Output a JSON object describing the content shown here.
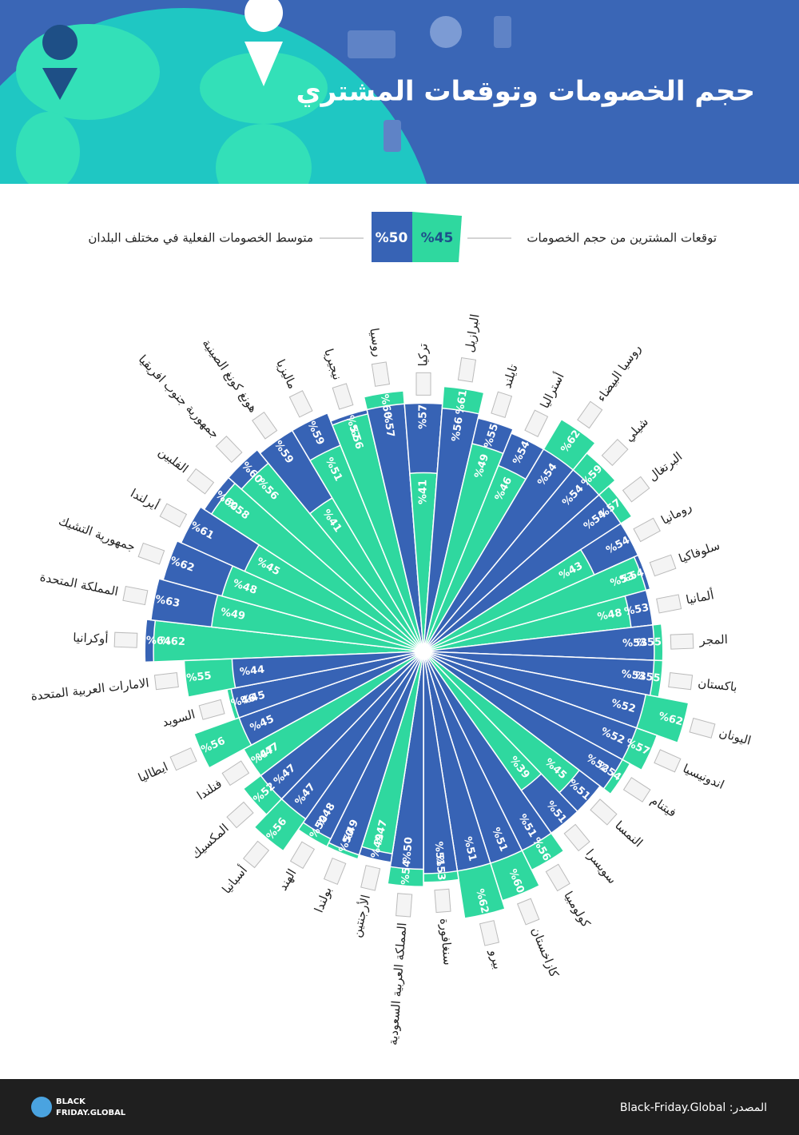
{
  "header": {
    "title": "حجم الخصومات وتوقعات المشتري"
  },
  "chart_data": {
    "type": "radial-bar",
    "categories": [
      "أوكرانيا",
      "المملكة المتحدة",
      "جمهورية التشيك",
      "أيرلندا",
      "الفلبين",
      "جمهورية جنوب افريقيا",
      "هونغ كونغ الصينية",
      "ماليزيا",
      "نيجيريا",
      "روسيا",
      "تركيا",
      "البرازيل",
      "تايلند",
      "أستراليا",
      "روسيا البيضاء",
      "شيلي",
      "البرتغال",
      "رومانيا",
      "سلوفاكيا",
      "ألمانيا",
      "المجر",
      "باكستان",
      "اليونان",
      "اندونيسيا",
      "فيتنام",
      "النمسا",
      "سويسرا",
      "كولومبيا",
      "كازاخستان",
      "بيرو",
      "سنغافورة",
      "المملكة العربية السعودية",
      "الأرجنتين",
      "بولندا",
      "الهند",
      "أسبانيا",
      "المكسيك",
      "فنلندا",
      "ايطاليا",
      "السويد",
      "الامارات العربية المتحدة"
    ],
    "series": [
      {
        "name": "متوسط الخصومات الفعلية في مختلف البلدان",
        "color": "#3763b5",
        "average": 50,
        "average_label": "%50",
        "values": [
          64,
          63,
          62,
          61,
          60,
          60,
          59,
          59,
          57,
          57,
          57,
          56,
          55,
          54,
          54,
          54,
          54,
          54,
          54,
          53,
          53,
          53,
          52,
          52,
          52,
          51,
          51,
          51,
          51,
          51,
          51,
          50,
          49,
          49,
          48,
          47,
          47,
          47,
          45,
          45,
          44
        ],
        "value_labels": [
          "%64",
          "%63",
          "%62",
          "%61",
          "%60",
          "%60",
          "%59",
          "%59",
          "%57",
          "%57",
          "%57",
          "%56",
          "%55",
          "%54",
          "%54",
          "%54",
          "%54",
          "%54",
          "%54",
          "%53",
          "%53",
          "%53",
          "%52",
          "%52",
          "%52",
          "%51",
          "%51",
          "%51",
          "%51",
          "%51",
          "%51",
          "%50",
          "%49",
          "%49",
          "%48",
          "%47",
          "%47",
          "%47",
          "%45",
          "%45",
          "%44"
        ]
      },
      {
        "name": "توقعات المشترين من حجم الخصومات",
        "color": "#2fd89f",
        "average": 45,
        "average_label": "%45",
        "values": [
          62,
          49,
          48,
          45,
          58,
          56,
          41,
          51,
          56,
          60,
          41,
          61,
          49,
          46,
          62,
          59,
          57,
          43,
          53,
          48,
          55,
          55,
          62,
          57,
          54,
          45,
          39,
          56,
          60,
          62,
          53,
          54,
          47,
          50,
          50,
          56,
          52,
          47,
          56,
          46,
          55
        ],
        "value_labels": [
          "%62",
          "%49",
          "%48",
          "%45",
          "%58",
          "%56",
          "%41",
          "%51",
          "%56",
          "%60",
          "%41",
          "%61",
          "%49",
          "%46",
          "%62",
          "%59",
          "%57",
          "%43",
          "%53",
          "%48",
          "%55",
          "%55",
          "%62",
          "%57",
          "%54",
          "%45",
          "%39",
          "%56",
          "%60",
          "%62",
          "%53",
          "%54",
          "%47",
          "%50",
          "%50",
          "%56",
          "%52",
          "%47",
          "%56",
          "%46",
          "%55"
        ]
      }
    ]
  },
  "footer": {
    "source": "المصدر: Black-Friday.Global",
    "logo_top": "BLACK",
    "logo_bottom": "FRIDAY.GLOBAL"
  }
}
